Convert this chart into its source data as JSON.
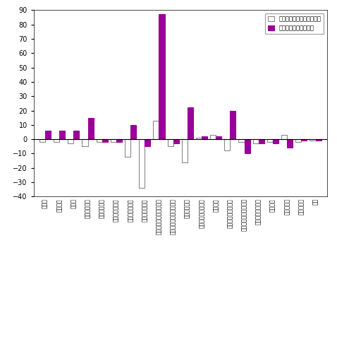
{
  "categories": [
    "鉱工業",
    "製造工業",
    "鉄飼業",
    "非鉄金属工業",
    "金属製品工業",
    "はん用機械工業",
    "生産用機械工業",
    "業務用機械工業",
    "電子部品・デバイス工業",
    "電気・情報通信機械工業",
    "輸送機械工業",
    "竦業・土石製品工業",
    "化学工業",
    "石油・石炭製品工業",
    "プラスチック製品工業",
    "紙・紙加工品工業",
    "繊維工業",
    "食料品工業",
    "その他工業",
    "鉱業"
  ],
  "mom_values": [
    -2,
    -2,
    -3,
    -5,
    -2,
    -2,
    -12,
    -34,
    13,
    -5,
    -16,
    1,
    3,
    -8,
    -2,
    -3,
    -2,
    3,
    -2,
    -1
  ],
  "yoy_values": [
    6,
    6,
    6,
    15,
    -2,
    -2,
    10,
    -5,
    87,
    -3,
    22,
    2,
    2,
    20,
    -10,
    -3,
    -3,
    -6,
    -1,
    -1
  ],
  "mom_color": "#ffffff",
  "mom_edge_color": "#888888",
  "yoy_color": "#990099",
  "ylim": [
    -40,
    90
  ],
  "yticks": [
    -40,
    -30,
    -20,
    -10,
    0,
    10,
    20,
    30,
    40,
    50,
    60,
    70,
    80,
    90
  ],
  "legend_mom": "前月比（季節調整済指数）",
  "legend_yoy": "前年同月比（原指数）",
  "background_color": "#ffffff",
  "bar_width": 0.4
}
